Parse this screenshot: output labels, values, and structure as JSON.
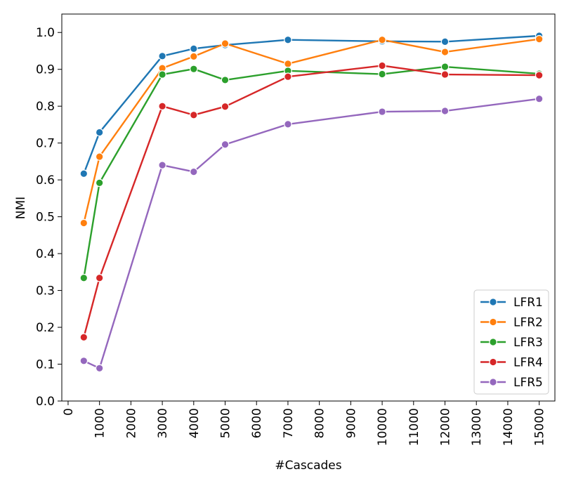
{
  "chart_data": {
    "type": "line",
    "title": "",
    "xlabel": "#Cascades",
    "ylabel": "NMI",
    "xlim": [
      -200,
      15500
    ],
    "ylim": [
      0.0,
      1.05
    ],
    "grid": false,
    "legend_position": "lower-right",
    "x_ticks": [
      0,
      1000,
      2000,
      3000,
      4000,
      5000,
      6000,
      7000,
      8000,
      9000,
      10000,
      11000,
      12000,
      13000,
      14000,
      15000
    ],
    "x_tick_labels": [
      "0",
      "1000",
      "2000",
      "3000",
      "4000",
      "5000",
      "6000",
      "7000",
      "8000",
      "9000",
      "10000",
      "11000",
      "12000",
      "13000",
      "14000",
      "15000"
    ],
    "y_ticks": [
      0.0,
      0.1,
      0.2,
      0.3,
      0.4,
      0.5,
      0.6,
      0.7,
      0.8,
      0.9,
      1.0
    ],
    "y_tick_labels": [
      "0.0",
      "0.1",
      "0.2",
      "0.3",
      "0.4",
      "0.5",
      "0.6",
      "0.7",
      "0.8",
      "0.9",
      "1.0"
    ],
    "x": [
      500,
      1000,
      3000,
      4000,
      5000,
      7000,
      10000,
      12000,
      15000
    ],
    "series": [
      {
        "name": "LFR1",
        "color": "#1f77b4",
        "values": [
          0.617,
          0.729,
          0.936,
          0.956,
          0.966,
          0.98,
          0.976,
          0.975,
          0.991
        ]
      },
      {
        "name": "LFR2",
        "color": "#ff7f0e",
        "values": [
          0.483,
          0.663,
          0.903,
          0.935,
          0.97,
          0.915,
          0.98,
          0.947,
          0.982
        ]
      },
      {
        "name": "LFR3",
        "color": "#2ca02c",
        "values": [
          0.334,
          0.592,
          0.886,
          0.901,
          0.871,
          0.896,
          0.887,
          0.907,
          0.888
        ]
      },
      {
        "name": "LFR4",
        "color": "#d62728",
        "values": [
          0.173,
          0.334,
          0.8,
          0.776,
          0.799,
          0.88,
          0.91,
          0.886,
          0.884
        ]
      },
      {
        "name": "LFR5",
        "color": "#9467bd",
        "values": [
          0.109,
          0.089,
          0.64,
          0.622,
          0.696,
          0.751,
          0.785,
          0.787,
          0.82
        ]
      }
    ]
  }
}
